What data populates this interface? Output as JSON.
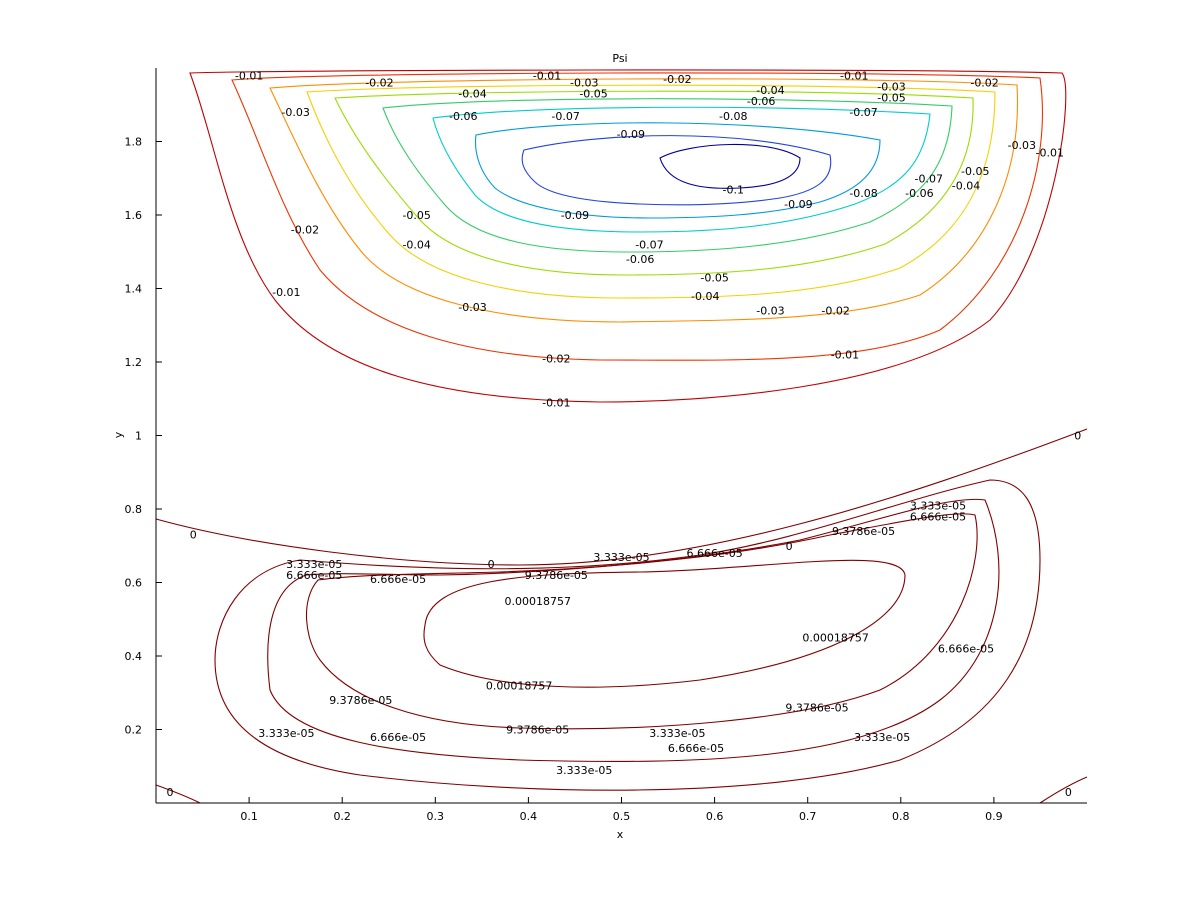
{
  "chart_data": {
    "type": "contour",
    "title": "Psi",
    "xlabel": "x",
    "ylabel": "y",
    "xlim": [
      0,
      1
    ],
    "ylim": [
      0,
      2
    ],
    "xticks": [
      "0.1",
      "0.2",
      "0.3",
      "0.4",
      "0.5",
      "0.6",
      "0.7",
      "0.8",
      "0.9"
    ],
    "yticks": [
      "0.2",
      "0.4",
      "0.6",
      "0.8",
      "1",
      "1.2",
      "1.4",
      "1.6",
      "1.8"
    ],
    "xtick_values": [
      0.1,
      0.2,
      0.3,
      0.4,
      0.5,
      0.6,
      0.7,
      0.8,
      0.9
    ],
    "ytick_values": [
      0.2,
      0.4,
      0.6,
      0.8,
      1.0,
      1.2,
      1.4,
      1.6,
      1.8
    ],
    "upper_vortex": {
      "levels": [
        "-0.01",
        "-0.02",
        "-0.03",
        "-0.04",
        "-0.05",
        "-0.06",
        "-0.07",
        "-0.08",
        "-0.09",
        "-0.1"
      ],
      "colors": [
        "#c00000",
        "#ee3300",
        "#ff8c00",
        "#f4d000",
        "#99dd00",
        "#33cc66",
        "#00cccc",
        "#0099dd",
        "#2244dd",
        "#000099"
      ],
      "labels": [
        {
          "text": "-0.01",
          "x": 0.1,
          "y": 1.98
        },
        {
          "text": "-0.01",
          "x": 0.42,
          "y": 1.98
        },
        {
          "text": "-0.01",
          "x": 0.75,
          "y": 1.98
        },
        {
          "text": "-0.02",
          "x": 0.24,
          "y": 1.96
        },
        {
          "text": "-0.02",
          "x": 0.56,
          "y": 1.97
        },
        {
          "text": "-0.02",
          "x": 0.89,
          "y": 1.96
        },
        {
          "text": "-0.03",
          "x": 0.46,
          "y": 1.96
        },
        {
          "text": "-0.03",
          "x": 0.79,
          "y": 1.95
        },
        {
          "text": "-0.04",
          "x": 0.34,
          "y": 1.93
        },
        {
          "text": "-0.04",
          "x": 0.66,
          "y": 1.94
        },
        {
          "text": "-0.05",
          "x": 0.47,
          "y": 1.93
        },
        {
          "text": "-0.05",
          "x": 0.79,
          "y": 1.92
        },
        {
          "text": "-0.06",
          "x": 0.65,
          "y": 1.91
        },
        {
          "text": "-0.06",
          "x": 0.33,
          "y": 1.87
        },
        {
          "text": "-0.07",
          "x": 0.44,
          "y": 1.87
        },
        {
          "text": "-0.07",
          "x": 0.76,
          "y": 1.88
        },
        {
          "text": "-0.08",
          "x": 0.62,
          "y": 1.87
        },
        {
          "text": "-0.09",
          "x": 0.51,
          "y": 1.82
        },
        {
          "text": "-0.03",
          "x": 0.15,
          "y": 1.88
        },
        {
          "text": "-0.1",
          "x": 0.62,
          "y": 1.67
        },
        {
          "text": "-0.09",
          "x": 0.69,
          "y": 1.63
        },
        {
          "text": "-0.09",
          "x": 0.45,
          "y": 1.6
        },
        {
          "text": "-0.08",
          "x": 0.76,
          "y": 1.66
        },
        {
          "text": "-0.07",
          "x": 0.83,
          "y": 1.7
        },
        {
          "text": "-0.06",
          "x": 0.82,
          "y": 1.66
        },
        {
          "text": "-0.05",
          "x": 0.88,
          "y": 1.72
        },
        {
          "text": "-0.04",
          "x": 0.87,
          "y": 1.68
        },
        {
          "text": "-0.03",
          "x": 0.93,
          "y": 1.79
        },
        {
          "text": "-0.01",
          "x": 0.96,
          "y": 1.77
        },
        {
          "text": "-0.05",
          "x": 0.28,
          "y": 1.6
        },
        {
          "text": "-0.04",
          "x": 0.28,
          "y": 1.52
        },
        {
          "text": "-0.02",
          "x": 0.16,
          "y": 1.56
        },
        {
          "text": "-0.01",
          "x": 0.14,
          "y": 1.39
        },
        {
          "text": "-0.07",
          "x": 0.53,
          "y": 1.52
        },
        {
          "text": "-0.06",
          "x": 0.52,
          "y": 1.48
        },
        {
          "text": "-0.05",
          "x": 0.6,
          "y": 1.43
        },
        {
          "text": "-0.04",
          "x": 0.59,
          "y": 1.38
        },
        {
          "text": "-0.03",
          "x": 0.34,
          "y": 1.35
        },
        {
          "text": "-0.03",
          "x": 0.66,
          "y": 1.34
        },
        {
          "text": "-0.02",
          "x": 0.73,
          "y": 1.34
        },
        {
          "text": "-0.02",
          "x": 0.43,
          "y": 1.21
        },
        {
          "text": "-0.01",
          "x": 0.74,
          "y": 1.22
        },
        {
          "text": "-0.01",
          "x": 0.43,
          "y": 1.09
        }
      ]
    },
    "lower_vortex": {
      "levels": [
        "0",
        "3.333e-05",
        "6.666e-05",
        "9.3786e-05",
        "0.00018757"
      ],
      "color": "#800000",
      "labels": [
        {
          "text": "0",
          "x": 0.99,
          "y": 1.0
        },
        {
          "text": "0",
          "x": 0.04,
          "y": 0.73
        },
        {
          "text": "0",
          "x": 0.36,
          "y": 0.65
        },
        {
          "text": "0",
          "x": 0.68,
          "y": 0.7
        },
        {
          "text": "0",
          "x": 0.015,
          "y": 0.03
        },
        {
          "text": "0",
          "x": 0.98,
          "y": 0.03
        },
        {
          "text": "3.333e-05",
          "x": 0.84,
          "y": 0.81
        },
        {
          "text": "6.666e-05",
          "x": 0.84,
          "y": 0.78
        },
        {
          "text": "9.3786e-05",
          "x": 0.76,
          "y": 0.74
        },
        {
          "text": "3.333e-05",
          "x": 0.17,
          "y": 0.65
        },
        {
          "text": "6.666e-05",
          "x": 0.17,
          "y": 0.62
        },
        {
          "text": "3.333e-05",
          "x": 0.5,
          "y": 0.67
        },
        {
          "text": "6.666e-05",
          "x": 0.6,
          "y": 0.68
        },
        {
          "text": "9.3786e-05",
          "x": 0.43,
          "y": 0.62
        },
        {
          "text": "6.666e-05",
          "x": 0.26,
          "y": 0.61
        },
        {
          "text": "0.00018757",
          "x": 0.41,
          "y": 0.55
        },
        {
          "text": "0.00018757",
          "x": 0.73,
          "y": 0.45
        },
        {
          "text": "0.00018757",
          "x": 0.39,
          "y": 0.32
        },
        {
          "text": "9.3786e-05",
          "x": 0.22,
          "y": 0.28
        },
        {
          "text": "9.3786e-05",
          "x": 0.41,
          "y": 0.2
        },
        {
          "text": "9.3786e-05",
          "x": 0.71,
          "y": 0.26
        },
        {
          "text": "6.666e-05",
          "x": 0.26,
          "y": 0.18
        },
        {
          "text": "6.666e-05",
          "x": 0.58,
          "y": 0.15
        },
        {
          "text": "6.666e-05",
          "x": 0.87,
          "y": 0.42
        },
        {
          "text": "3.333e-05",
          "x": 0.14,
          "y": 0.19
        },
        {
          "text": "3.333e-05",
          "x": 0.46,
          "y": 0.09
        },
        {
          "text": "3.333e-05",
          "x": 0.78,
          "y": 0.18
        },
        {
          "text": "3.333e-05",
          "x": 0.56,
          "y": 0.19
        }
      ]
    }
  }
}
